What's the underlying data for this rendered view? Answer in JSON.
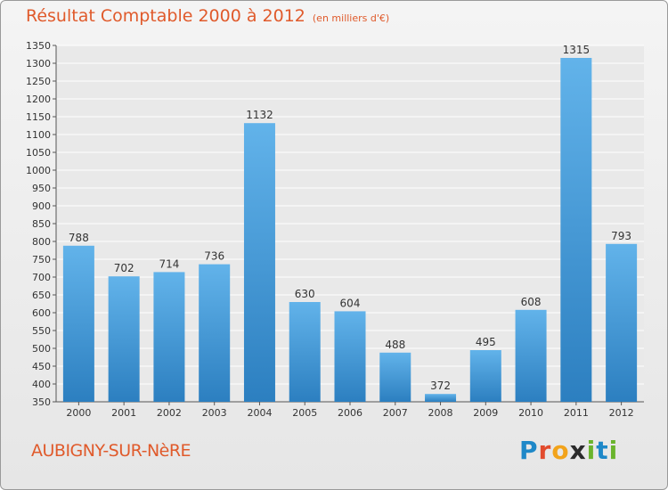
{
  "title": "Résultat Comptable 2000 à 2012",
  "subtitle": "(en milliers d'€)",
  "commune": "AUBIGNY-SUR-NèRE",
  "logo": {
    "letters": [
      "P",
      "r",
      "o",
      "x",
      "i",
      "t",
      "i"
    ],
    "colors": [
      "#1e88c8",
      "#e24b2d",
      "#f2a31b",
      "#2b2b2b",
      "#6ab42d",
      "#1e88c8",
      "#6ab42d"
    ]
  },
  "colors": {
    "bar_top": "#62b3ea",
    "bar_bottom": "#2c7fc0",
    "accent": "#e05a2b",
    "grid": "#ffffff"
  },
  "chart_data": {
    "type": "bar",
    "categories": [
      "2000",
      "2001",
      "2002",
      "2003",
      "2004",
      "2005",
      "2006",
      "2007",
      "2008",
      "2009",
      "2010",
      "2011",
      "2012"
    ],
    "values": [
      788,
      702,
      714,
      736,
      1132,
      630,
      604,
      488,
      372,
      495,
      608,
      1315,
      793
    ],
    "ylim": [
      350,
      1350
    ],
    "yticks": [
      350,
      400,
      450,
      500,
      550,
      600,
      650,
      700,
      750,
      800,
      850,
      900,
      950,
      1000,
      1050,
      1100,
      1150,
      1200,
      1250,
      1300,
      1350
    ],
    "grid": true,
    "title": "Résultat Comptable 2000 à 2012",
    "xlabel": "",
    "ylabel": ""
  }
}
